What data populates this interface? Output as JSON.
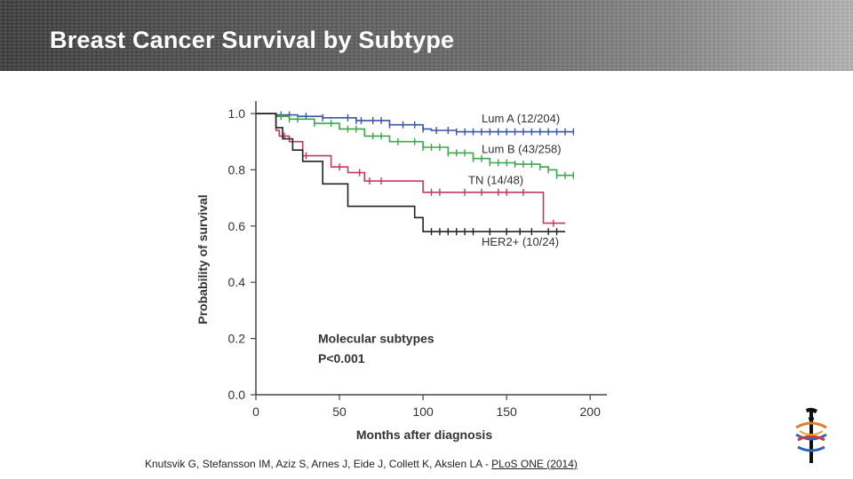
{
  "header": {
    "title": "Breast Cancer Survival by Subtype"
  },
  "chart_data": {
    "type": "line",
    "xlabel": "Months after diagnosis",
    "ylabel": "Probability of survival",
    "xlim": [
      0,
      210
    ],
    "ylim": [
      0,
      1.0
    ],
    "x_ticks": [
      0,
      50,
      100,
      150,
      200
    ],
    "x_tick_labels": [
      "0",
      "50",
      "100",
      "150",
      "200"
    ],
    "y_ticks": [
      0.0,
      0.2,
      0.4,
      0.6,
      0.8,
      1.0
    ],
    "y_tick_labels": [
      "0.0",
      "0.2",
      "0.4",
      "0.6",
      "0.8",
      "1.0"
    ],
    "grid": false,
    "annotations": {
      "group_label": "Molecular subtypes",
      "p_value": "P<0.001"
    },
    "series": [
      {
        "name": "Lum A (12/204)",
        "color": "#3a55a6",
        "x": [
          0,
          12,
          25,
          40,
          60,
          80,
          100,
          105,
          120,
          150,
          190
        ],
        "y": [
          1.0,
          0.995,
          0.99,
          0.985,
          0.975,
          0.96,
          0.945,
          0.94,
          0.935,
          0.935,
          0.935
        ],
        "censor_x": [
          15,
          20,
          30,
          40,
          55,
          60,
          63,
          70,
          75,
          80,
          88,
          95,
          100,
          108,
          115,
          120,
          125,
          130,
          135,
          140,
          145,
          150,
          155,
          160,
          165,
          170,
          175,
          180,
          185,
          190
        ]
      },
      {
        "name": "Lum B (43/258)",
        "color": "#3aa84a",
        "x": [
          0,
          12,
          20,
          35,
          50,
          65,
          80,
          100,
          115,
          130,
          140,
          155,
          170,
          175,
          180,
          190
        ],
        "y": [
          1.0,
          0.99,
          0.98,
          0.965,
          0.945,
          0.92,
          0.9,
          0.88,
          0.86,
          0.84,
          0.825,
          0.82,
          0.81,
          0.8,
          0.78,
          0.78
        ],
        "censor_x": [
          15,
          20,
          25,
          35,
          45,
          55,
          60,
          70,
          75,
          85,
          95,
          100,
          105,
          110,
          115,
          120,
          125,
          130,
          135,
          140,
          145,
          150,
          155,
          160,
          165,
          170,
          175,
          180,
          185,
          190
        ]
      },
      {
        "name": "TN (14/48)",
        "color": "#c23a5a",
        "x": [
          0,
          10,
          12,
          14,
          20,
          28,
          45,
          55,
          65,
          95,
          100,
          170,
          172,
          180,
          185
        ],
        "y": [
          1.0,
          1.0,
          0.94,
          0.92,
          0.9,
          0.85,
          0.81,
          0.79,
          0.76,
          0.76,
          0.72,
          0.72,
          0.61,
          0.61,
          0.61
        ],
        "censor_x": [
          17,
          30,
          50,
          62,
          68,
          75,
          105,
          110,
          125,
          135,
          145,
          150,
          160,
          178
        ]
      },
      {
        "name": "HER2+ (10/24)",
        "color": "#222222",
        "x": [
          0,
          10,
          12,
          16,
          22,
          28,
          40,
          55,
          95,
          100,
          185
        ],
        "y": [
          1.0,
          1.0,
          0.95,
          0.91,
          0.87,
          0.83,
          0.75,
          0.67,
          0.63,
          0.58,
          0.58
        ],
        "censor_x": [
          105,
          110,
          115,
          120,
          125,
          130,
          140,
          150,
          158,
          165,
          175,
          180
        ]
      }
    ]
  },
  "citation": {
    "authors": "Knutsvik G, Stefansson IM, Aziz S, Arnes J, Eide J, Collett K, Akslen LA - ",
    "journal": "PLoS ONE (2014)"
  },
  "logo": {
    "icon": "caduceus-style-logo-icon"
  }
}
